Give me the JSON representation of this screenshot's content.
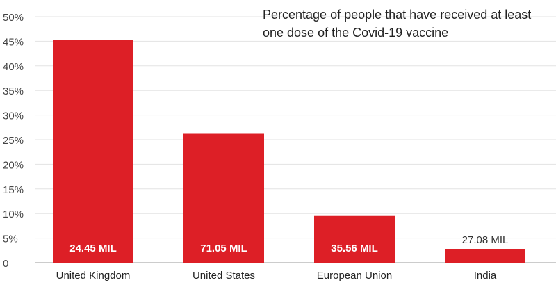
{
  "chart_data": {
    "type": "bar",
    "title": "Percentage of people that have received at least one dose of the Covid-19 vaccine",
    "categories": [
      "United Kingdom",
      "United States",
      "European Union",
      "India"
    ],
    "values": [
      45.2,
      26.2,
      9.5,
      2.8
    ],
    "data_labels": [
      "24.45 MIL",
      "71.05 MIL",
      "35.56 MIL",
      "27.08 MIL"
    ],
    "ylim": [
      0,
      50
    ],
    "yticks": [
      0,
      5,
      10,
      15,
      20,
      25,
      30,
      35,
      40,
      45,
      50
    ],
    "ytick_labels": [
      "0",
      "5%",
      "10%",
      "15%",
      "20%",
      "25%",
      "30%",
      "35%",
      "40%",
      "45%",
      "50%"
    ],
    "xlabel": "",
    "ylabel": "",
    "grid": true,
    "bar_color": "#dd1f26",
    "grid_color": "#e3e3e3",
    "inside_label_color": "#ffffff",
    "outside_label_color": "#333333"
  }
}
